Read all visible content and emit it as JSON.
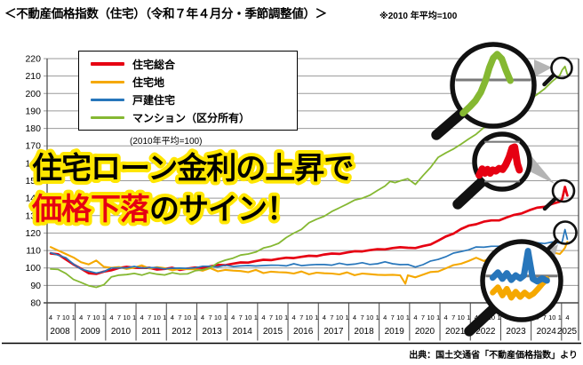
{
  "header": {
    "title": "＜不動産価格指数（住宅）（令和７年４月分・季節調整値）＞",
    "note": "※2010 年平均=100"
  },
  "headline": {
    "line1": "住宅ローン金利の上昇で",
    "line2_highlight": "価格下落",
    "line2_rest": "のサイン！",
    "outline_color": "#ffe600",
    "highlight_color": "#e60012",
    "text_color": "#000000"
  },
  "legend": {
    "note": "(2010年平均=100)",
    "items": [
      {
        "label": "住宅総合",
        "color": "#e60012"
      },
      {
        "label": "住宅地",
        "color": "#f5a800"
      },
      {
        "label": "戸建住宅",
        "color": "#2776bb"
      },
      {
        "label": "マンション（区分所有）",
        "color": "#85b832"
      }
    ]
  },
  "source": "出典：国土交通省「不動産価格指数」より",
  "chart_data": {
    "type": "line",
    "title": "不動産価格指数（住宅）（令和７年４月分・季節調整値）",
    "legend_position": "top-left-inside",
    "grid": "horizontal-only",
    "y_axis": {
      "min": 80,
      "max": 220,
      "step": 10
    },
    "x_axis": {
      "years": [
        "2008",
        "2009",
        "2010",
        "2011",
        "2012",
        "2013",
        "2014",
        "2015",
        "2016",
        "2017",
        "2018",
        "2019",
        "2020",
        "2021",
        "2022",
        "2023",
        "2024",
        "2025"
      ],
      "month_ticks": [
        "4",
        "7",
        "10",
        "1"
      ],
      "final_tick": "4"
    },
    "series": [
      {
        "name": "住宅総合",
        "color": "#e60012",
        "width": 2.7,
        "points": [
          [
            2008.25,
            108.3
          ],
          [
            2008.5,
            107.5
          ],
          [
            2008.75,
            105.2
          ],
          [
            2009.0,
            102
          ],
          [
            2009.25,
            99.3
          ],
          [
            2009.5,
            97.3
          ],
          [
            2009.75,
            96.6
          ],
          [
            2010.0,
            97.6
          ],
          [
            2010.25,
            99
          ],
          [
            2010.5,
            100
          ],
          [
            2010.75,
            100.3
          ],
          [
            2011.0,
            100.4
          ],
          [
            2011.25,
            100
          ],
          [
            2011.5,
            99.8
          ],
          [
            2011.75,
            99.4
          ],
          [
            2012.0,
            99.4
          ],
          [
            2012.25,
            99.8
          ],
          [
            2012.5,
            99.2
          ],
          [
            2012.75,
            99.6
          ],
          [
            2013.0,
            100
          ],
          [
            2013.25,
            100.4
          ],
          [
            2013.5,
            100.9
          ],
          [
            2013.75,
            101.4
          ],
          [
            2014.0,
            101.9
          ],
          [
            2014.25,
            102.4
          ],
          [
            2014.5,
            102.9
          ],
          [
            2014.75,
            103.4
          ],
          [
            2015.0,
            103.9
          ],
          [
            2015.25,
            104.4
          ],
          [
            2015.5,
            104.8
          ],
          [
            2015.75,
            105.2
          ],
          [
            2016.0,
            105.6
          ],
          [
            2016.25,
            106
          ],
          [
            2016.5,
            106.3
          ],
          [
            2016.75,
            106.7
          ],
          [
            2017.0,
            107.1
          ],
          [
            2017.25,
            107.6
          ],
          [
            2017.5,
            108
          ],
          [
            2017.75,
            108.4
          ],
          [
            2018.0,
            108.8
          ],
          [
            2018.25,
            109.3
          ],
          [
            2018.5,
            109.8
          ],
          [
            2018.75,
            110.1
          ],
          [
            2019.0,
            110.5
          ],
          [
            2019.25,
            111
          ],
          [
            2019.5,
            111.3
          ],
          [
            2019.75,
            111.6
          ],
          [
            2020.0,
            111.9
          ],
          [
            2020.25,
            111.3
          ],
          [
            2020.5,
            112.3
          ],
          [
            2020.75,
            113.8
          ],
          [
            2021.0,
            115.6
          ],
          [
            2021.25,
            117.8
          ],
          [
            2021.5,
            120
          ],
          [
            2021.75,
            122.2
          ],
          [
            2022.0,
            124
          ],
          [
            2022.25,
            125.4
          ],
          [
            2022.5,
            126.4
          ],
          [
            2022.75,
            127
          ],
          [
            2023.0,
            127.6
          ],
          [
            2023.25,
            128.8
          ],
          [
            2023.5,
            130.2
          ],
          [
            2023.75,
            131.6
          ],
          [
            2024.0,
            133
          ],
          [
            2024.25,
            134.3
          ],
          [
            2024.5,
            135.4
          ],
          [
            2024.75,
            136.6
          ],
          [
            2025.0,
            138
          ],
          [
            2025.08,
            139.5
          ],
          [
            2025.17,
            146.5
          ],
          [
            2025.25,
            141.5
          ]
        ]
      },
      {
        "name": "住宅地",
        "color": "#f5a800",
        "width": 2.1,
        "points": [
          [
            2008.25,
            111.5
          ],
          [
            2008.5,
            110.3
          ],
          [
            2008.75,
            108.2
          ],
          [
            2009.0,
            105.5
          ],
          [
            2009.25,
            103.6
          ],
          [
            2009.5,
            102.2
          ],
          [
            2009.75,
            103.8
          ],
          [
            2010.0,
            101
          ],
          [
            2010.25,
            100.3
          ],
          [
            2010.5,
            100
          ],
          [
            2010.75,
            99.7
          ],
          [
            2011.0,
            100.4
          ],
          [
            2011.25,
            101
          ],
          [
            2011.5,
            100
          ],
          [
            2011.75,
            100.6
          ],
          [
            2012.0,
            99.4
          ],
          [
            2012.25,
            99
          ],
          [
            2012.5,
            99.6
          ],
          [
            2012.75,
            98.8
          ],
          [
            2013.0,
            99.6
          ],
          [
            2013.25,
            98.5
          ],
          [
            2013.5,
            99.4
          ],
          [
            2013.75,
            98.4
          ],
          [
            2014.0,
            99
          ],
          [
            2014.25,
            98
          ],
          [
            2014.5,
            98.6
          ],
          [
            2014.75,
            97.7
          ],
          [
            2015.0,
            98.4
          ],
          [
            2015.25,
            97.4
          ],
          [
            2015.5,
            98
          ],
          [
            2015.75,
            97.1
          ],
          [
            2016.0,
            97.8
          ],
          [
            2016.25,
            96.9
          ],
          [
            2016.5,
            97.5
          ],
          [
            2016.75,
            96.7
          ],
          [
            2017.0,
            97.4
          ],
          [
            2017.25,
            96.5
          ],
          [
            2017.5,
            97.2
          ],
          [
            2017.75,
            96.4
          ],
          [
            2018.0,
            97
          ],
          [
            2018.25,
            96.2
          ],
          [
            2018.5,
            96.9
          ],
          [
            2018.75,
            96
          ],
          [
            2019.0,
            96.5
          ],
          [
            2019.25,
            96
          ],
          [
            2019.5,
            95.6
          ],
          [
            2019.75,
            96.2
          ],
          [
            2019.92,
            91
          ],
          [
            2020.0,
            95.3
          ],
          [
            2020.25,
            95
          ],
          [
            2020.5,
            96.2
          ],
          [
            2020.75,
            97.2
          ],
          [
            2021.0,
            98.4
          ],
          [
            2021.25,
            99.8
          ],
          [
            2021.5,
            101.2
          ],
          [
            2021.75,
            102.8
          ],
          [
            2022.0,
            104
          ],
          [
            2022.25,
            105.4
          ],
          [
            2022.5,
            104.4
          ],
          [
            2022.75,
            106
          ],
          [
            2023.0,
            104.8
          ],
          [
            2023.25,
            106.8
          ],
          [
            2023.5,
            105.4
          ],
          [
            2023.75,
            107.4
          ],
          [
            2024.0,
            106
          ],
          [
            2024.25,
            108
          ],
          [
            2024.5,
            106.6
          ],
          [
            2024.75,
            109.4
          ],
          [
            2025.0,
            108
          ],
          [
            2025.08,
            109.5
          ],
          [
            2025.17,
            111.5
          ],
          [
            2025.25,
            115
          ]
        ]
      },
      {
        "name": "戸建住宅",
        "color": "#2776bb",
        "width": 1.7,
        "points": [
          [
            2008.25,
            108.8
          ],
          [
            2008.5,
            107.6
          ],
          [
            2008.75,
            105.5
          ],
          [
            2009.0,
            102.3
          ],
          [
            2009.25,
            99.6
          ],
          [
            2009.5,
            97.8
          ],
          [
            2009.75,
            97.2
          ],
          [
            2010.0,
            98.2
          ],
          [
            2010.25,
            99.6
          ],
          [
            2010.5,
            100.2
          ],
          [
            2010.75,
            100.3
          ],
          [
            2011.0,
            100.5
          ],
          [
            2011.25,
            100.1
          ],
          [
            2011.5,
            100.4
          ],
          [
            2011.75,
            99.8
          ],
          [
            2012.0,
            99.6
          ],
          [
            2012.25,
            100.1
          ],
          [
            2012.5,
            99.5
          ],
          [
            2012.75,
            99.9
          ],
          [
            2013.0,
            100.3
          ],
          [
            2013.25,
            100.6
          ],
          [
            2013.5,
            101.1
          ],
          [
            2013.75,
            100.8
          ],
          [
            2014.0,
            101.2
          ],
          [
            2014.25,
            101
          ],
          [
            2014.5,
            101.4
          ],
          [
            2014.75,
            101
          ],
          [
            2015.0,
            101.3
          ],
          [
            2015.25,
            101.6
          ],
          [
            2015.5,
            101.2
          ],
          [
            2015.75,
            101.7
          ],
          [
            2016.0,
            101.4
          ],
          [
            2016.25,
            102
          ],
          [
            2016.5,
            101.5
          ],
          [
            2016.75,
            101.9
          ],
          [
            2017.0,
            101.6
          ],
          [
            2017.25,
            102.1
          ],
          [
            2017.5,
            101.8
          ],
          [
            2017.75,
            102.3
          ],
          [
            2018.0,
            102
          ],
          [
            2018.25,
            102.4
          ],
          [
            2018.5,
            102.6
          ],
          [
            2018.75,
            102.2
          ],
          [
            2019.0,
            102.6
          ],
          [
            2019.25,
            103.1
          ],
          [
            2019.5,
            102.6
          ],
          [
            2019.75,
            102.1
          ],
          [
            2020.0,
            101.6
          ],
          [
            2020.25,
            100.7
          ],
          [
            2020.5,
            102.1
          ],
          [
            2020.75,
            103.6
          ],
          [
            2021.0,
            105.1
          ],
          [
            2021.25,
            106.6
          ],
          [
            2021.5,
            108.1
          ],
          [
            2021.75,
            109.6
          ],
          [
            2022.0,
            110.6
          ],
          [
            2022.25,
            111.6
          ],
          [
            2022.5,
            112.1
          ],
          [
            2022.75,
            112.6
          ],
          [
            2023.0,
            112.1
          ],
          [
            2023.25,
            113.6
          ],
          [
            2023.5,
            112.6
          ],
          [
            2023.75,
            113.6
          ],
          [
            2024.0,
            113.1
          ],
          [
            2024.25,
            114.6
          ],
          [
            2024.5,
            113.6
          ],
          [
            2024.75,
            115.1
          ],
          [
            2025.0,
            114.3
          ],
          [
            2025.08,
            115
          ],
          [
            2025.17,
            122
          ],
          [
            2025.25,
            116.5
          ]
        ]
      },
      {
        "name": "マンション（区分所有）",
        "color": "#85b832",
        "width": 1.8,
        "points": [
          [
            2008.25,
            99.8
          ],
          [
            2008.5,
            98.8
          ],
          [
            2008.75,
            96.8
          ],
          [
            2009.0,
            93.8
          ],
          [
            2009.25,
            91.3
          ],
          [
            2009.5,
            89.8
          ],
          [
            2009.75,
            89.3
          ],
          [
            2010.0,
            90
          ],
          [
            2010.25,
            94.8
          ],
          [
            2010.5,
            96.3
          ],
          [
            2010.75,
            95.8
          ],
          [
            2011.0,
            96.8
          ],
          [
            2011.25,
            96.3
          ],
          [
            2011.5,
            96.9
          ],
          [
            2011.75,
            96.4
          ],
          [
            2012.0,
            96.4
          ],
          [
            2012.25,
            96.9
          ],
          [
            2012.5,
            96.5
          ],
          [
            2012.75,
            97
          ],
          [
            2013.0,
            98
          ],
          [
            2013.25,
            99
          ],
          [
            2013.5,
            100.5
          ],
          [
            2013.75,
            102.5
          ],
          [
            2014.0,
            104.5
          ],
          [
            2014.25,
            106
          ],
          [
            2014.5,
            107
          ],
          [
            2014.75,
            108
          ],
          [
            2015.0,
            109.5
          ],
          [
            2015.25,
            111
          ],
          [
            2015.5,
            112.5
          ],
          [
            2015.75,
            114.5
          ],
          [
            2016.0,
            117
          ],
          [
            2016.25,
            120
          ],
          [
            2016.5,
            122.5
          ],
          [
            2016.75,
            125.5
          ],
          [
            2017.0,
            128
          ],
          [
            2017.25,
            130
          ],
          [
            2017.5,
            132
          ],
          [
            2017.75,
            134.5
          ],
          [
            2018.0,
            137
          ],
          [
            2018.25,
            138.5
          ],
          [
            2018.5,
            140
          ],
          [
            2018.75,
            142
          ],
          [
            2019.0,
            144
          ],
          [
            2019.25,
            147
          ],
          [
            2019.42,
            150
          ],
          [
            2019.58,
            148.5
          ],
          [
            2019.75,
            150
          ],
          [
            2020.0,
            151.5
          ],
          [
            2020.25,
            147.5
          ],
          [
            2020.5,
            153
          ],
          [
            2020.75,
            158
          ],
          [
            2021.0,
            163
          ],
          [
            2021.25,
            166
          ],
          [
            2021.5,
            168.5
          ],
          [
            2021.75,
            170.5
          ],
          [
            2022.0,
            174
          ],
          [
            2022.25,
            177
          ],
          [
            2022.5,
            180
          ],
          [
            2022.75,
            183
          ],
          [
            2023.0,
            185.5
          ],
          [
            2023.25,
            188
          ],
          [
            2023.5,
            190.5
          ],
          [
            2023.75,
            193
          ],
          [
            2024.0,
            196
          ],
          [
            2024.25,
            199.5
          ],
          [
            2024.5,
            203
          ],
          [
            2024.75,
            206.5
          ],
          [
            2025.0,
            210.5
          ],
          [
            2025.08,
            213.5
          ],
          [
            2025.17,
            215.5
          ],
          [
            2025.25,
            211
          ]
        ]
      }
    ]
  }
}
